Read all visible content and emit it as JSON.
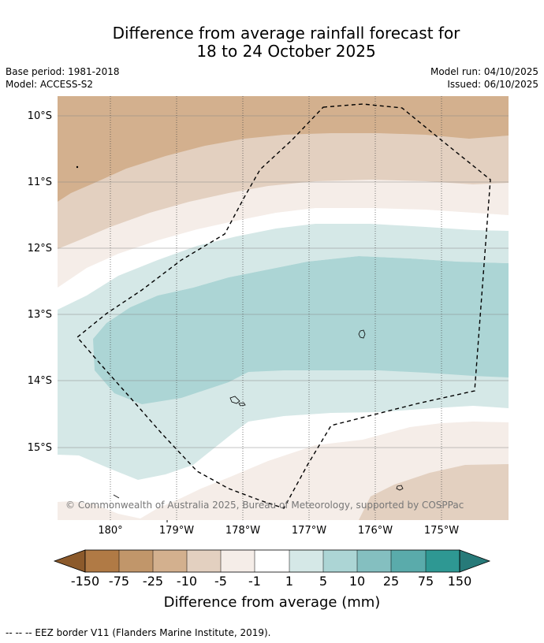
{
  "title": {
    "line1": "Difference from average rainfall forecast for",
    "line2": "18 to 24 October 2025"
  },
  "meta": {
    "base_period": "Base period: 1981-2018",
    "model": "Model: ACCESS-S2",
    "model_run": "Model run: 04/10/2025",
    "issued": "Issued: 06/10/2025"
  },
  "map": {
    "lat_labels": [
      "10°S",
      "11°S",
      "12°S",
      "13°S",
      "14°S",
      "15°S"
    ],
    "lon_labels": [
      "180°",
      "179°W",
      "178°W",
      "177°W",
      "176°W",
      "175°W"
    ],
    "copyright": "© Commonwealth of Australia 2025, Bureau of Meteorology, supported by COSPPac"
  },
  "colorbar": {
    "tick_labels": [
      "-150",
      "-75",
      "-25",
      "-10",
      "-5",
      "-1",
      "1",
      "5",
      "10",
      "25",
      "75",
      "150"
    ],
    "label": "Difference from average (mm)",
    "colors": {
      "lt_-150": "#8c5a2b",
      "-150_-75": "#b07a45",
      "-75_-25": "#c1966a",
      "-25_-10": "#d3b08e",
      "-10_-5": "#e3d0c0",
      "-5_-1": "#f5ede8",
      "-1_1": "#ffffff",
      "1_5": "#d5e8e7",
      "5_10": "#acd5d5",
      "10_25": "#84bfc0",
      "25_75": "#5aabab",
      "75_150": "#2e9893",
      "gt_150": "#277a79"
    }
  },
  "footer": {
    "eez_legend": "--  --  -- EEZ border V11 (Flanders Marine Institute, 2019)."
  }
}
